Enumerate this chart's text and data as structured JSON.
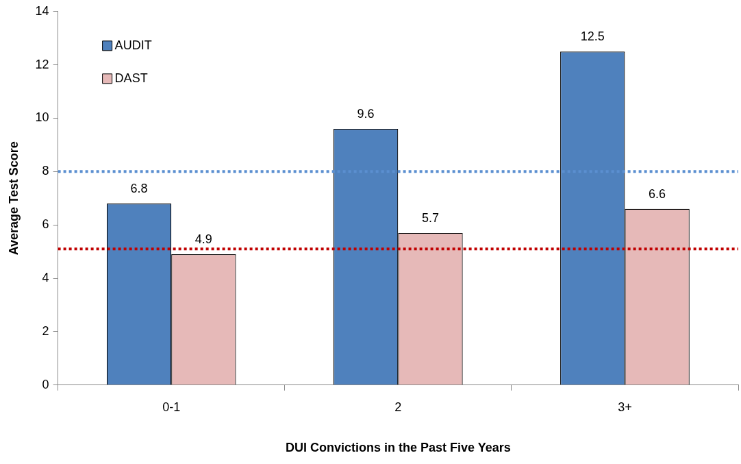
{
  "chart_data": {
    "type": "bar",
    "xlabel": "DUI Convictions in the Past Five Years",
    "ylabel": "Average Test Score",
    "categories": [
      "0-1",
      "2",
      "3+"
    ],
    "series": [
      {
        "name": "AUDIT",
        "color": "#4f81bd",
        "values": [
          6.8,
          9.6,
          12.5
        ]
      },
      {
        "name": "DAST",
        "color": "#e6b9b8",
        "values": [
          4.9,
          5.7,
          6.6
        ]
      }
    ],
    "ylim": [
      0,
      14
    ],
    "yticks": [
      0,
      2,
      4,
      6,
      8,
      10,
      12,
      14
    ],
    "grid": false,
    "legend": "top left",
    "data_labels": true,
    "ref_lines": [
      {
        "axis": "y",
        "value": 8,
        "color": "#5b8fd0",
        "line_style": "dotted"
      },
      {
        "axis": "y",
        "value": 5.1,
        "color": "#c00000",
        "line_style": "dotted"
      }
    ]
  }
}
